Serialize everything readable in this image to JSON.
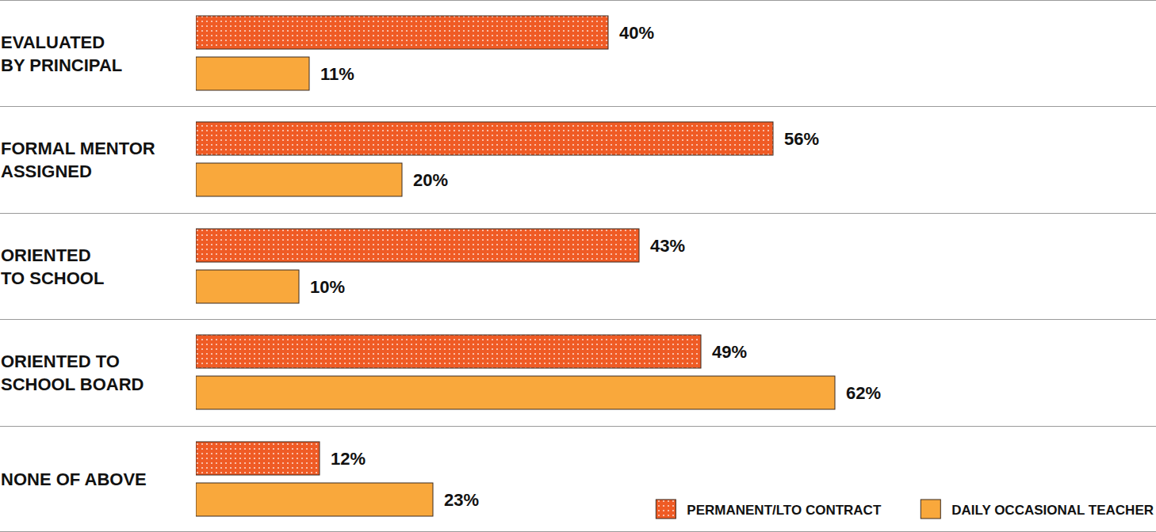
{
  "chart_data": {
    "type": "bar",
    "orientation": "horizontal",
    "categories": [
      "EVALUATED\nBY PRINCIPAL",
      "FORMAL MENTOR\nASSIGNED",
      "ORIENTED\nTO SCHOOL",
      "ORIENTED TO\nSCHOOL BOARD",
      "NONE OF ABOVE"
    ],
    "series": [
      {
        "name": "PERMANENT/LTO CONTRACT",
        "color": "#ef5b25",
        "values": [
          40,
          56,
          43,
          49,
          12
        ],
        "value_labels": [
          "40%",
          "56%",
          "43%",
          "49%",
          "12%"
        ]
      },
      {
        "name": "DAILY OCCASIONAL TEACHER",
        "color": "#f9a83c",
        "values": [
          11,
          20,
          10,
          62,
          23
        ],
        "value_labels": [
          "11%",
          "20%",
          "10%",
          "62%",
          "23%"
        ]
      }
    ],
    "xlim": [
      0,
      93
    ],
    "data_labels": true,
    "tick_labels": false,
    "grid": false,
    "legend": "lower right"
  }
}
